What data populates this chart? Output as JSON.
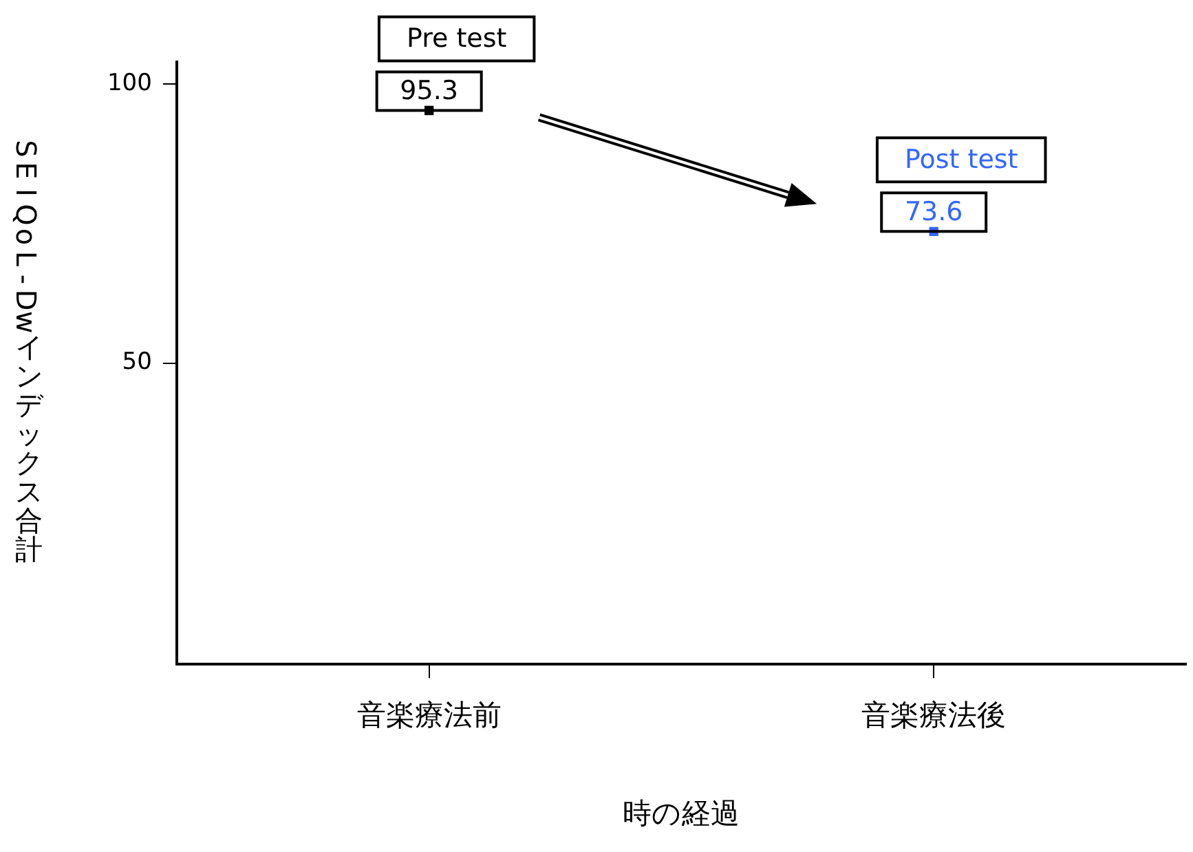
{
  "chart_data": {
    "type": "line",
    "xlabel": "時の経過",
    "ylabel": "SEIQoL-Dwインデックス合計",
    "categories": [
      "音楽療法前",
      "音楽療法後"
    ],
    "series": [
      {
        "name": "Pre test",
        "color": "#000000",
        "values": [
          95.3,
          null
        ]
      },
      {
        "name": "Post test",
        "color": "#3366ff",
        "values": [
          null,
          73.6
        ]
      }
    ],
    "ylim": [
      -4,
      104
    ],
    "yticks": [
      50,
      100
    ],
    "grid": false,
    "legend": false,
    "marker": "square",
    "data_labels": true
  }
}
